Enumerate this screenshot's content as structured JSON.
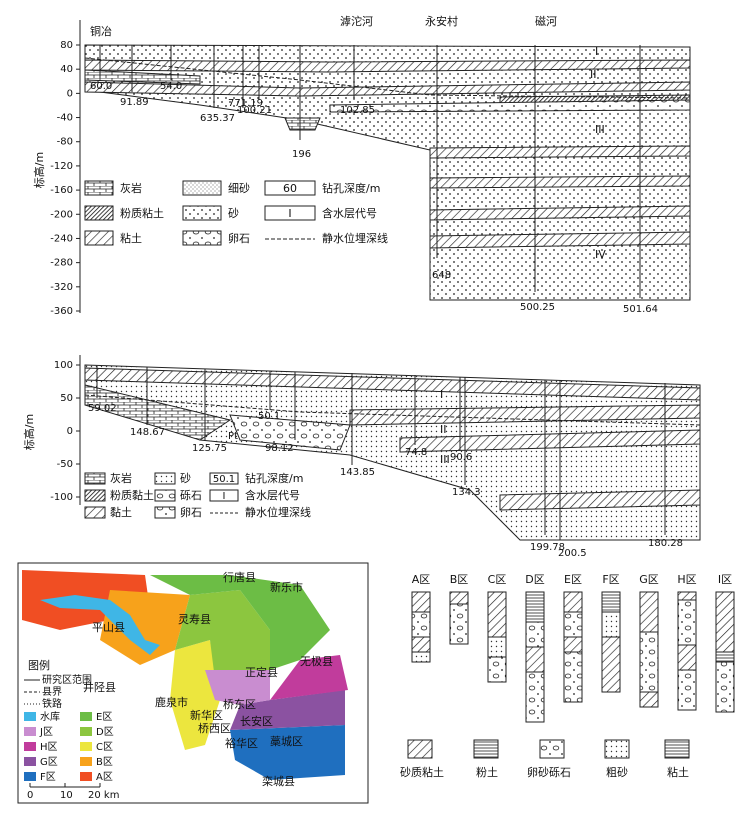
{
  "section1": {
    "y_label": "标高/m",
    "yticks": [
      80,
      40,
      0,
      -40,
      -80,
      -120,
      -160,
      -200,
      -240,
      -280,
      -320,
      -360
    ],
    "places": [
      "铜冶",
      "滹沱河",
      "永安村",
      "磁河"
    ],
    "depths": [
      "60.0",
      "91.89",
      "54.0",
      "635.37",
      "771.19",
      "100.21",
      "102.85",
      "196",
      "648",
      "500.25",
      "501.64"
    ],
    "aquifers": [
      "I",
      "II",
      "III",
      "IV"
    ],
    "legend": [
      "灰岩",
      "粉质粘土",
      "粘土",
      "细砂",
      "砂",
      "卵石",
      "钻孔深度/m",
      "含水层代号",
      "静水位埋深线"
    ],
    "legend_symbols": [
      "60",
      "I"
    ]
  },
  "section2": {
    "y_label": "标高/m",
    "yticks": [
      100,
      50,
      0,
      -50,
      -100
    ],
    "depths": [
      "59.02",
      "148.67",
      "125.75",
      "50.1",
      "98.12",
      "143.85",
      "74.8",
      "90.6",
      "134.3",
      "199.78",
      "200.5",
      "180.28"
    ],
    "rock": "Pt",
    "aquifers": [
      "I",
      "II",
      "III"
    ],
    "legend": [
      "灰岩",
      "粉质黏土",
      "黏土",
      "砂",
      "砾石",
      "卵石",
      "钻孔深度/m",
      "含水层代号",
      "静水位埋深线"
    ],
    "legend_symbols": [
      "50.1",
      "I"
    ]
  },
  "map": {
    "places": [
      "行唐县",
      "新乐市",
      "灵寿县",
      "平山县",
      "无极县",
      "正定县",
      "井陉县",
      "鹿泉市",
      "新华区",
      "桥东区",
      "桥西区",
      "长安区",
      "裕华区",
      "藁城区",
      "栾城县"
    ],
    "legend_title": "图例",
    "legend": [
      "研究区范围",
      "县界",
      "铁路",
      "水库",
      "E区",
      "J区",
      "D区",
      "H区",
      "C区",
      "G区",
      "B区",
      "F区",
      "A区"
    ],
    "scale": [
      "0",
      "10",
      "20 km"
    ]
  },
  "columns": {
    "labels": [
      "A区",
      "B区",
      "C区",
      "D区",
      "E区",
      "F区",
      "G区",
      "H区",
      "I区"
    ],
    "legend": [
      "砂质粘土",
      "粉土",
      "卵砂砾石",
      "粗砂",
      "粘土"
    ]
  }
}
